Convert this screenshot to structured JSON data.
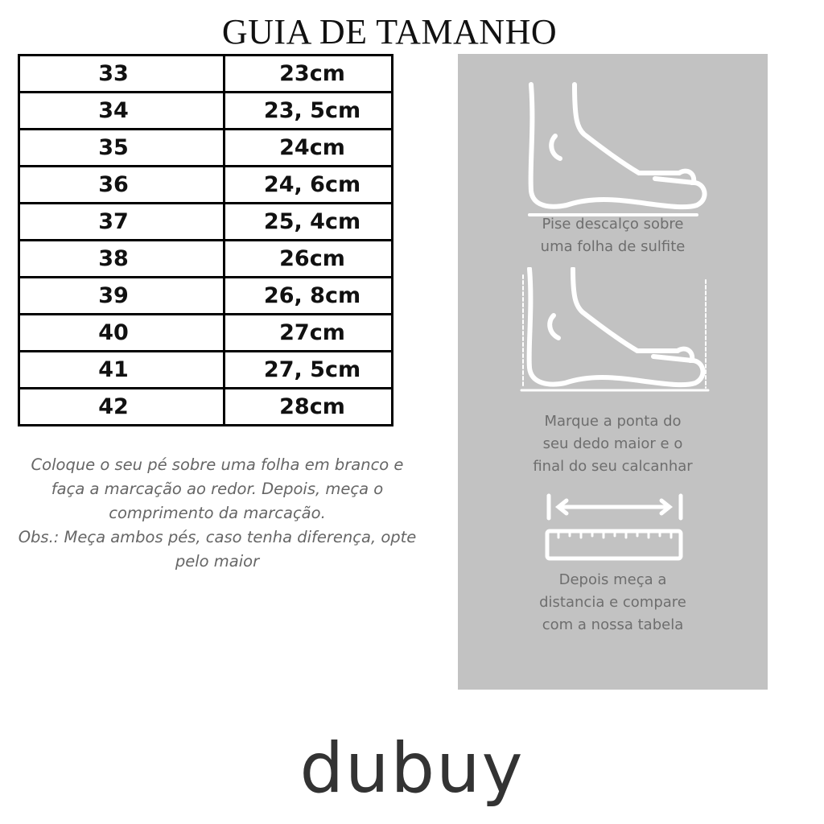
{
  "title": "GUIA DE TAMANHO",
  "sizes": [
    {
      "size": "33",
      "length": "23cm"
    },
    {
      "size": "34",
      "length": "23, 5cm"
    },
    {
      "size": "35",
      "length": "24cm"
    },
    {
      "size": "36",
      "length": "24, 6cm"
    },
    {
      "size": "37",
      "length": "25, 4cm"
    },
    {
      "size": "38",
      "length": "26cm"
    },
    {
      "size": "39",
      "length": "26, 8cm"
    },
    {
      "size": "40",
      "length": "27cm"
    },
    {
      "size": "41",
      "length": "27, 5cm"
    },
    {
      "size": "42",
      "length": "28cm"
    }
  ],
  "instructions": {
    "line1": "Coloque o seu pé sobre uma folha em branco e",
    "line2": "faça a marcação ao redor. Depois, meça o",
    "line3": "comprimento da marcação.",
    "line4": "Obs.: Meça ambos pés, caso tenha diferença, opte",
    "line5": "pelo maior"
  },
  "panel": {
    "step1": [
      "Pise descalço sobre",
      "uma folha de sulfite"
    ],
    "step2": [
      "Marque a ponta do",
      "seu dedo maior e o",
      "final do seu calcanhar"
    ],
    "step3": [
      "Depois meça a",
      "distancia e compare",
      "com a nossa tabela"
    ],
    "background": "#c2c2c2"
  },
  "brand": "dubuy"
}
